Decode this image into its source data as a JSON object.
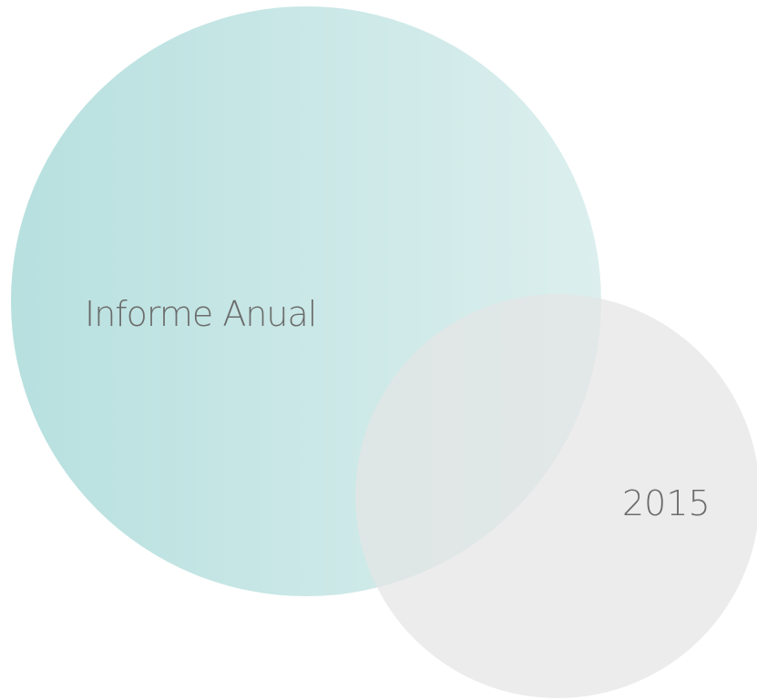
{
  "title": "Informe Anual",
  "year": "2015"
}
